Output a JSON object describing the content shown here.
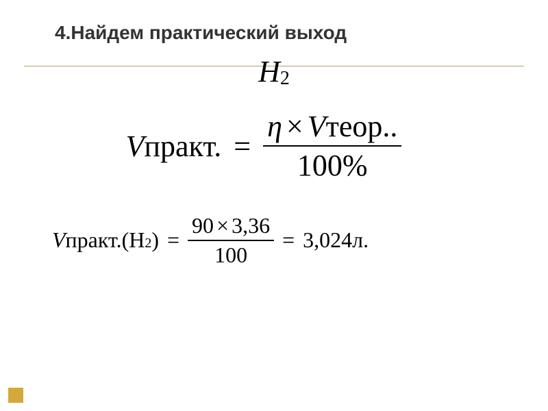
{
  "title": {
    "text": "4.Найдем практический выход",
    "fontsize": 28,
    "color": "#333333"
  },
  "underline": {
    "color": "#b0a070"
  },
  "h2_symbol": {
    "letter": "H",
    "subscript": "2",
    "fontsize_main": 44,
    "fontsize_sub": 28,
    "color": "#000000"
  },
  "formula1": {
    "lhs_v": "V",
    "lhs_text": "практ.",
    "eq": "=",
    "num_eta": "η",
    "num_mult": "×",
    "num_v": "V",
    "num_text": "теор..",
    "den": "100%",
    "fontsize": 44,
    "color": "#000000"
  },
  "formula2": {
    "lhs_v": "V",
    "lhs_text": "практ.(",
    "lhs_h": "H",
    "lhs_sub": "2",
    "lhs_close": ")",
    "eq": "=",
    "num_a": "90",
    "num_mult": "×",
    "num_b": "3,36",
    "den": "100",
    "result_eq": "=",
    "result": "3,024л.",
    "fontsize": 32,
    "fontsize_sub": 20,
    "color": "#000000"
  },
  "square": {
    "color": "#d4a83a",
    "size": 22
  }
}
